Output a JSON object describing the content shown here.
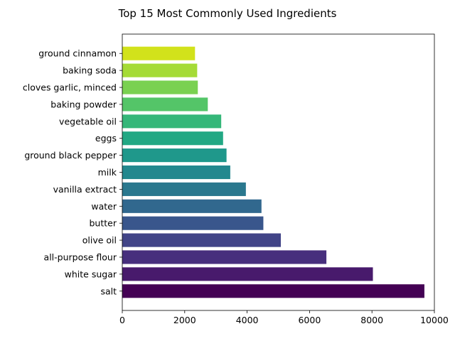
{
  "chart_data": {
    "type": "bar",
    "orientation": "horizontal",
    "title": "Top 15 Most Commonly Used Ingredients",
    "xlabel": "",
    "ylabel": "",
    "xlim": [
      0,
      10000
    ],
    "xticks": [
      0,
      2000,
      4000,
      6000,
      8000,
      10000
    ],
    "grid": false,
    "categories": [
      "salt",
      "white sugar",
      "all-purpose flour",
      "olive oil",
      "butter",
      "water",
      "vanilla extract",
      "milk",
      "ground black pepper",
      "eggs",
      "vegetable oil",
      "baking powder",
      "cloves garlic, minced",
      "baking soda",
      "ground cinnamon"
    ],
    "values": [
      9680,
      8030,
      6540,
      5080,
      4520,
      4460,
      3960,
      3460,
      3340,
      3230,
      3170,
      2740,
      2420,
      2400,
      2330
    ],
    "colors": [
      "#440154",
      "#481a6c",
      "#472f7d",
      "#414487",
      "#39568c",
      "#31688e",
      "#2a788e",
      "#23888e",
      "#1f988b",
      "#22a884",
      "#35b779",
      "#54c568",
      "#7ad151",
      "#a5db36",
      "#d2e21b"
    ]
  }
}
